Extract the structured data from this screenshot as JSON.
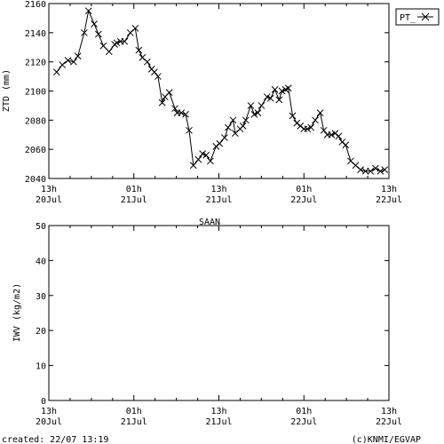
{
  "footer": {
    "created": "created: 22/07 13:19",
    "credit": "(c)KNMI/EGVAP"
  },
  "chart_data": [
    {
      "type": "line",
      "ylabel": "ZTD (mm)",
      "ylim": [
        2040,
        2160
      ],
      "yticks": [
        2040,
        2060,
        2080,
        2100,
        2120,
        2140,
        2160
      ],
      "xlim": [
        0,
        48
      ],
      "xticks": [
        {
          "t": 0,
          "top": "13h",
          "bottom": "20Jul"
        },
        {
          "t": 12,
          "top": "01h",
          "bottom": "21Jul"
        },
        {
          "t": 24,
          "top": "13h",
          "bottom": "21Jul"
        },
        {
          "t": 36,
          "top": "01h",
          "bottom": "22Jul"
        },
        {
          "t": 48,
          "top": "13h",
          "bottom": "22Jul"
        }
      ],
      "grid": false,
      "legend_position": "top-right",
      "series": [
        {
          "name": "PT_",
          "marker": "x",
          "x": [
            1.1,
            1.9,
            2.7,
            3.5,
            4.1,
            5.0,
            5.6,
            6.4,
            7.0,
            7.7,
            8.5,
            9.3,
            9.6,
            10.1,
            10.7,
            11.5,
            12.2,
            12.7,
            13.2,
            13.9,
            14.5,
            14.9,
            15.4,
            16.0,
            16.4,
            17.0,
            17.8,
            18.1,
            18.7,
            19.3,
            19.8,
            20.4,
            21.1,
            21.7,
            22.2,
            22.8,
            23.6,
            24.1,
            24.8,
            25.3,
            26.0,
            26.3,
            27.0,
            27.4,
            27.8,
            28.5,
            29.0,
            29.5,
            30.0,
            30.8,
            31.3,
            31.9,
            32.5,
            32.9,
            33.4,
            33.8,
            34.4,
            35.0,
            35.5,
            36.0,
            36.5,
            37.0,
            37.6,
            38.3,
            38.8,
            39.3,
            39.9,
            40.4,
            40.9,
            41.4,
            41.9,
            42.6,
            43.3,
            44.0,
            44.7,
            45.4,
            46.1,
            46.8,
            47.4
          ],
          "y": [
            2113,
            2118,
            2121,
            2120,
            2124,
            2140,
            2155,
            2146,
            2139,
            2131,
            2127,
            2132,
            2133,
            2134,
            2134,
            2140,
            2143,
            2128,
            2123,
            2120,
            2115,
            2113,
            2110,
            2092,
            2096,
            2099,
            2088,
            2085,
            2085,
            2084,
            2073,
            2049,
            2053,
            2057,
            2056,
            2052,
            2062,
            2064,
            2068,
            2075,
            2080,
            2071,
            2074,
            2076,
            2080,
            2090,
            2084,
            2085,
            2090,
            2096,
            2095,
            2101,
            2094,
            2100,
            2101,
            2102,
            2083,
            2078,
            2076,
            2074,
            2074,
            2075,
            2080,
            2085,
            2073,
            2070,
            2070,
            2071,
            2069,
            2065,
            2063,
            2052,
            2049,
            2046,
            2045,
            2045,
            2047,
            2045,
            2046
          ]
        }
      ]
    },
    {
      "type": "line",
      "title": "SAAN",
      "ylabel": "IWV (kg/m2)",
      "ylim": [
        0,
        50
      ],
      "yticks": [
        0,
        10,
        20,
        30,
        40,
        50
      ],
      "xlim": [
        0,
        48
      ],
      "xticks": [
        {
          "t": 0,
          "top": "13h",
          "bottom": "20Jul"
        },
        {
          "t": 12,
          "top": "01h",
          "bottom": "21Jul"
        },
        {
          "t": 24,
          "top": "13h",
          "bottom": "21Jul"
        },
        {
          "t": 36,
          "top": "01h",
          "bottom": "22Jul"
        },
        {
          "t": 48,
          "top": "13h",
          "bottom": "22Jul"
        }
      ],
      "grid": false,
      "series": []
    }
  ]
}
